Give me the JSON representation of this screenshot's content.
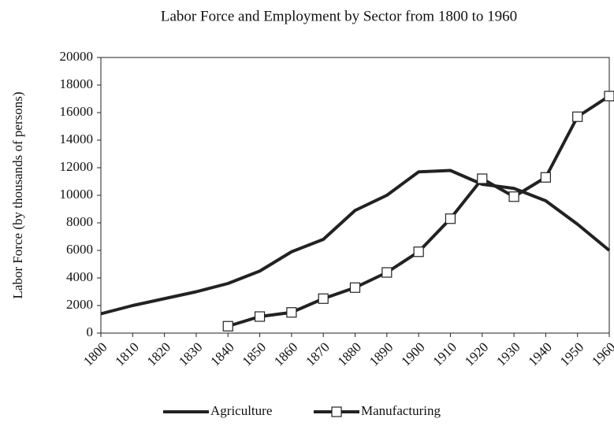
{
  "chart_data": {
    "type": "line",
    "title": "Labor Force and Employment by Sector from 1800 to 1960",
    "y_label": "Labor Force (by thousands of persons)",
    "x": [
      1800,
      1810,
      1820,
      1830,
      1840,
      1850,
      1860,
      1870,
      1880,
      1890,
      1900,
      1910,
      1920,
      1930,
      1940,
      1950,
      1960
    ],
    "series": [
      {
        "name": "Agriculture",
        "color": "#222222",
        "values": [
          1400,
          2000,
          2500,
          3000,
          3600,
          4500,
          5900,
          6800,
          8900,
          10000,
          11700,
          11800,
          10800,
          10500,
          9600,
          7900,
          6000
        ]
      },
      {
        "name": "Manufacturing",
        "color": "#222222",
        "marker": "square",
        "values": [
          null,
          null,
          null,
          null,
          500,
          1200,
          1500,
          2500,
          3300,
          4400,
          5900,
          8300,
          11200,
          9900,
          11300,
          15700,
          17200
        ]
      }
    ],
    "xlim": [
      1800,
      1960
    ],
    "xticks": [
      1800,
      1810,
      1820,
      1830,
      1840,
      1850,
      1860,
      1870,
      1880,
      1890,
      1900,
      1910,
      1920,
      1930,
      1940,
      1950,
      1960
    ],
    "ylim": [
      0,
      20000
    ],
    "yticks": [
      0,
      2000,
      4000,
      6000,
      8000,
      10000,
      12000,
      14000,
      16000,
      18000,
      20000
    ],
    "grid": false,
    "legend": "bottom"
  }
}
